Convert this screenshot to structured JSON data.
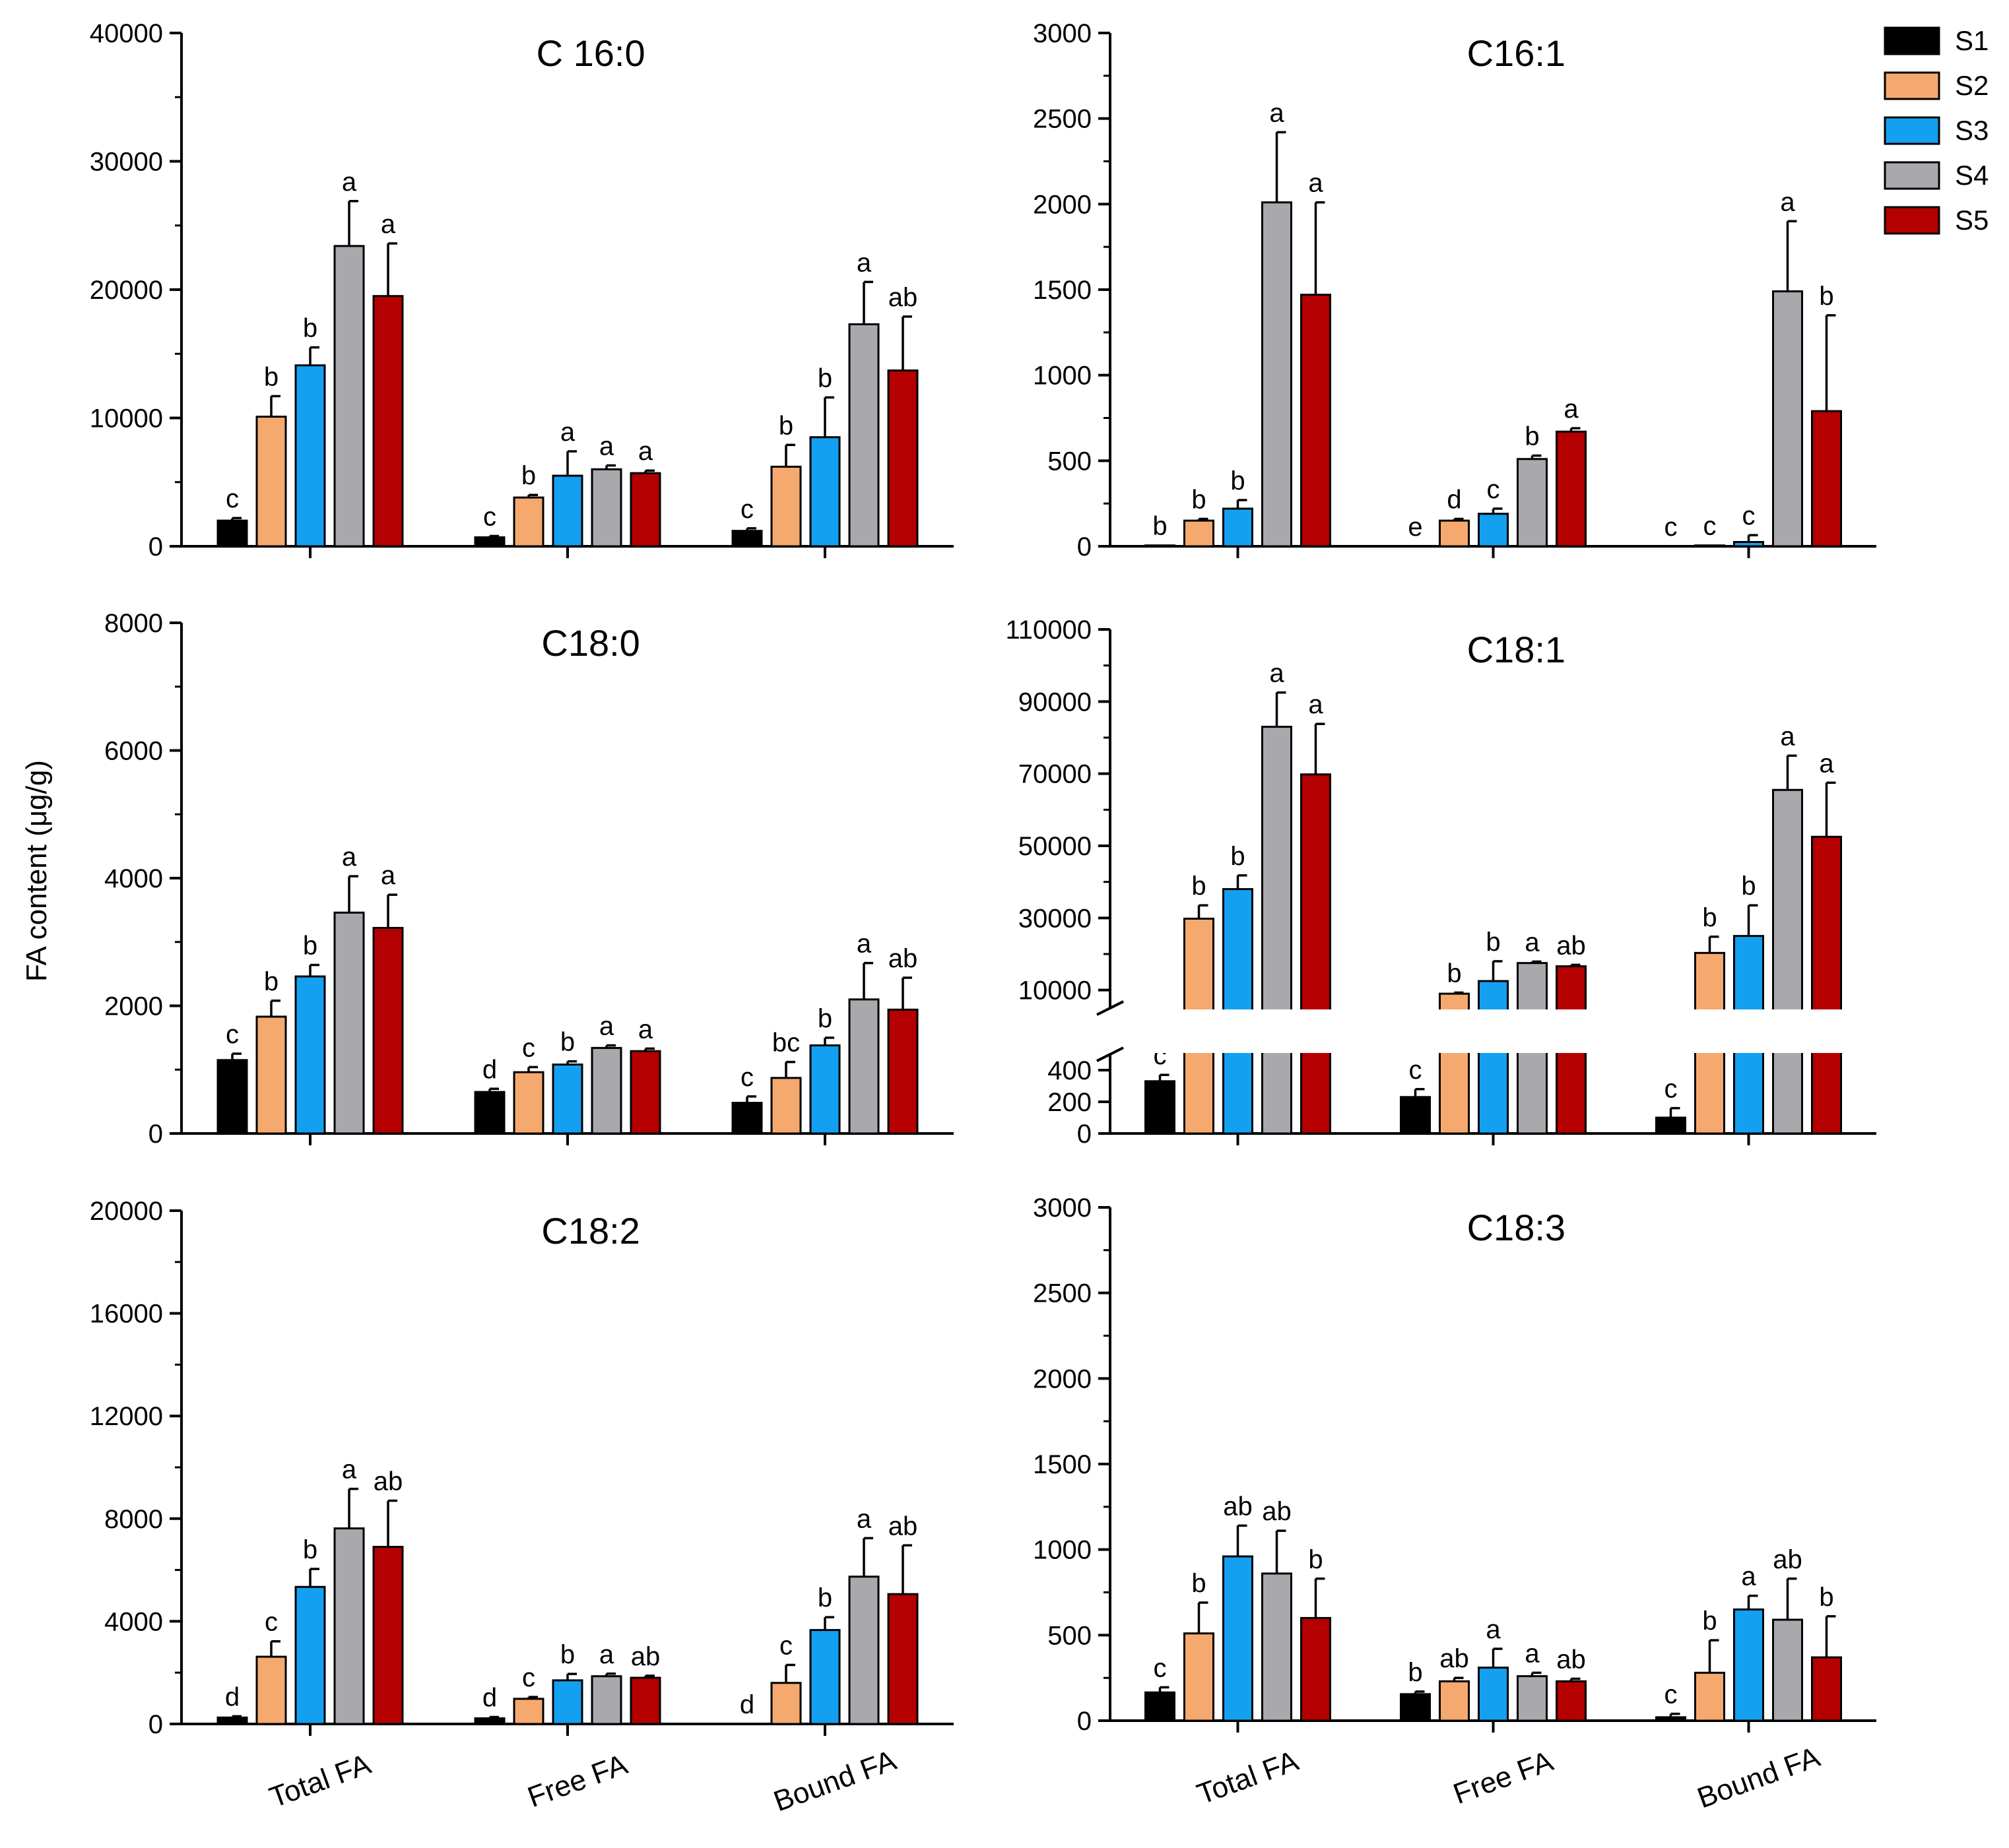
{
  "figure": {
    "ylabel": "FA content (μg/g)",
    "categories": [
      "Total FA",
      "Free FA",
      "Bound FA"
    ],
    "legend": [
      {
        "name": "S1",
        "color": "#000000"
      },
      {
        "name": "S2",
        "color": "#f6a96e"
      },
      {
        "name": "S3",
        "color": "#14a0f0"
      },
      {
        "name": "S4",
        "color": "#a8a8ad"
      },
      {
        "name": "S5",
        "color": "#b40000"
      }
    ]
  },
  "chart_data": [
    {
      "type": "bar",
      "title": "C 16:0",
      "categories": [
        "Total FA",
        "Free FA",
        "Bound FA"
      ],
      "ylim": [
        0,
        40000
      ],
      "yticks": [
        "0",
        "10000",
        "20000",
        "30000",
        "40000"
      ],
      "series": [
        {
          "name": "S1",
          "values": [
            2000,
            700,
            1200
          ],
          "errors": [
            200,
            100,
            200
          ],
          "labels": [
            "c",
            "c",
            "c"
          ]
        },
        {
          "name": "S2",
          "values": [
            10100,
            3800,
            6200
          ],
          "errors": [
            1600,
            200,
            1700
          ],
          "labels": [
            "b",
            "b",
            "b"
          ]
        },
        {
          "name": "S3",
          "values": [
            14100,
            5500,
            8500
          ],
          "errors": [
            1400,
            1900,
            3100
          ],
          "labels": [
            "b",
            "a",
            "b"
          ]
        },
        {
          "name": "S4",
          "values": [
            23400,
            6000,
            17300
          ],
          "errors": [
            3500,
            300,
            3300
          ],
          "labels": [
            "a",
            "a",
            "a"
          ]
        },
        {
          "name": "S5",
          "values": [
            19500,
            5700,
            13700
          ],
          "errors": [
            4100,
            200,
            4200
          ],
          "labels": [
            "a",
            "a",
            "ab"
          ]
        }
      ]
    },
    {
      "type": "bar",
      "title": "C16:1",
      "categories": [
        "Total FA",
        "Free FA",
        "Bound FA"
      ],
      "ylim": [
        0,
        3000
      ],
      "yticks": [
        "0",
        "500",
        "1000",
        "1500",
        "2000",
        "2500",
        "3000"
      ],
      "series": [
        {
          "name": "S1",
          "values": [
            5,
            0,
            0
          ],
          "errors": [
            0,
            0,
            0
          ],
          "labels": [
            "b",
            "e",
            "c"
          ]
        },
        {
          "name": "S2",
          "values": [
            150,
            150,
            5
          ],
          "errors": [
            10,
            10,
            0
          ],
          "labels": [
            "b",
            "d",
            "c"
          ]
        },
        {
          "name": "S3",
          "values": [
            220,
            190,
            25
          ],
          "errors": [
            50,
            30,
            40
          ],
          "labels": [
            "b",
            "c",
            "c"
          ]
        },
        {
          "name": "S4",
          "values": [
            2010,
            510,
            1490
          ],
          "errors": [
            410,
            20,
            410
          ],
          "labels": [
            "a",
            "b",
            "a"
          ]
        },
        {
          "name": "S5",
          "values": [
            1470,
            670,
            790
          ],
          "errors": [
            540,
            20,
            560
          ],
          "labels": [
            "a",
            "a",
            "b"
          ]
        }
      ]
    },
    {
      "type": "bar",
      "title": "C18:0",
      "categories": [
        "Total FA",
        "Free FA",
        "Bound FA"
      ],
      "ylim": [
        0,
        8000
      ],
      "yticks": [
        "0",
        "2000",
        "4000",
        "6000",
        "8000"
      ],
      "series": [
        {
          "name": "S1",
          "values": [
            1150,
            650,
            480
          ],
          "errors": [
            100,
            50,
            100
          ],
          "labels": [
            "c",
            "d",
            "c"
          ]
        },
        {
          "name": "S2",
          "values": [
            1830,
            960,
            870
          ],
          "errors": [
            250,
            80,
            250
          ],
          "labels": [
            "b",
            "c",
            "bc"
          ]
        },
        {
          "name": "S3",
          "values": [
            2460,
            1080,
            1380
          ],
          "errors": [
            180,
            50,
            120
          ],
          "labels": [
            "b",
            "b",
            "b"
          ]
        },
        {
          "name": "S4",
          "values": [
            3460,
            1340,
            2100
          ],
          "errors": [
            570,
            40,
            570
          ],
          "labels": [
            "a",
            "a",
            "a"
          ]
        },
        {
          "name": "S5",
          "values": [
            3220,
            1290,
            1940
          ],
          "errors": [
            520,
            40,
            500
          ],
          "labels": [
            "a",
            "a",
            "ab"
          ]
        }
      ]
    },
    {
      "type": "bar",
      "title": "C18:1",
      "categories": [
        "Total FA",
        "Free FA",
        "Bound FA"
      ],
      "ylim": [
        0,
        110000
      ],
      "axis_break": [
        500,
        5000
      ],
      "yticks_lower": [
        "0",
        "200",
        "400"
      ],
      "yticks_upper": [
        "10000",
        "30000",
        "50000",
        "70000",
        "90000",
        "110000"
      ],
      "series": [
        {
          "name": "S1",
          "values": [
            330,
            230,
            100
          ],
          "errors": [
            40,
            50,
            60
          ],
          "labels": [
            "c",
            "c",
            "c"
          ]
        },
        {
          "name": "S2",
          "values": [
            29800,
            9000,
            20300
          ],
          "errors": [
            3700,
            300,
            4500
          ],
          "labels": [
            "b",
            "b",
            "b"
          ]
        },
        {
          "name": "S3",
          "values": [
            38000,
            12500,
            25000
          ],
          "errors": [
            3800,
            5500,
            8500
          ],
          "labels": [
            "b",
            "b",
            "b"
          ]
        },
        {
          "name": "S4",
          "values": [
            83000,
            17500,
            65500
          ],
          "errors": [
            9500,
            400,
            9500
          ],
          "labels": [
            "a",
            "a",
            "a"
          ]
        },
        {
          "name": "S5",
          "values": [
            69800,
            16600,
            52500
          ],
          "errors": [
            14000,
            400,
            15000
          ],
          "labels": [
            "a",
            "ab",
            "a"
          ]
        }
      ]
    },
    {
      "type": "bar",
      "title": "C18:2",
      "categories": [
        "Total FA",
        "Free FA",
        "Bound FA"
      ],
      "ylim": [
        0,
        20000
      ],
      "yticks": [
        "0",
        "4000",
        "8000",
        "12000",
        "16000",
        "20000"
      ],
      "series": [
        {
          "name": "S1",
          "values": [
            250,
            220,
            0
          ],
          "errors": [
            50,
            50,
            0
          ],
          "labels": [
            "d",
            "d",
            "d"
          ]
        },
        {
          "name": "S2",
          "values": [
            2620,
            980,
            1600
          ],
          "errors": [
            600,
            70,
            700
          ],
          "labels": [
            "c",
            "c",
            "c"
          ]
        },
        {
          "name": "S3",
          "values": [
            5340,
            1700,
            3660
          ],
          "errors": [
            700,
            250,
            500
          ],
          "labels": [
            "b",
            "b",
            "b"
          ]
        },
        {
          "name": "S4",
          "values": [
            7620,
            1860,
            5740
          ],
          "errors": [
            1540,
            100,
            1500
          ],
          "labels": [
            "a",
            "a",
            "a"
          ]
        },
        {
          "name": "S5",
          "values": [
            6900,
            1800,
            5060
          ],
          "errors": [
            1800,
            80,
            1900
          ],
          "labels": [
            "ab",
            "ab",
            "ab"
          ]
        }
      ]
    },
    {
      "type": "bar",
      "title": "C18:3",
      "categories": [
        "Total FA",
        "Free FA",
        "Bound FA"
      ],
      "ylim": [
        0,
        3000
      ],
      "yticks": [
        "0",
        "500",
        "1000",
        "1500",
        "2000",
        "2500",
        "3000"
      ],
      "series": [
        {
          "name": "S1",
          "values": [
            165,
            155,
            20
          ],
          "errors": [
            30,
            15,
            20
          ],
          "labels": [
            "c",
            "b",
            "c"
          ]
        },
        {
          "name": "S2",
          "values": [
            510,
            230,
            280
          ],
          "errors": [
            180,
            20,
            190
          ],
          "labels": [
            "b",
            "ab",
            "b"
          ]
        },
        {
          "name": "S3",
          "values": [
            960,
            310,
            650
          ],
          "errors": [
            180,
            110,
            80
          ],
          "labels": [
            "ab",
            "a",
            "a"
          ]
        },
        {
          "name": "S4",
          "values": [
            860,
            260,
            590
          ],
          "errors": [
            250,
            20,
            240
          ],
          "labels": [
            "ab",
            "a",
            "ab"
          ]
        },
        {
          "name": "S5",
          "values": [
            600,
            230,
            370
          ],
          "errors": [
            230,
            15,
            240
          ],
          "labels": [
            "b",
            "ab",
            "b"
          ]
        }
      ]
    }
  ]
}
